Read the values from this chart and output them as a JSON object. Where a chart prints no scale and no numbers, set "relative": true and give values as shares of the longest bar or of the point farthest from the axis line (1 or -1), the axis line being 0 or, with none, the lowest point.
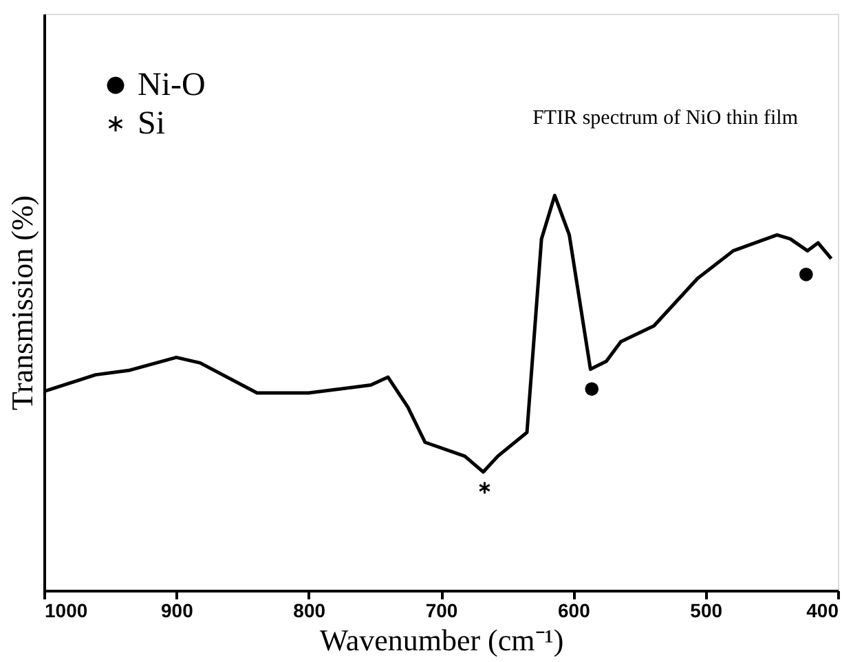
{
  "chart_data": {
    "type": "line",
    "relative": true,
    "xlabel": "Wavenumber (cm⁻¹)",
    "ylabel": "Transmission (%)",
    "xlim": [
      1000,
      400
    ],
    "xticks": [
      1000,
      900,
      800,
      700,
      600,
      500,
      400
    ],
    "grid": false,
    "legend": "top left",
    "annotations": [
      "FTIR spectrum of NiO thin film"
    ],
    "series": [
      {
        "color": "#000000",
        "marker": "none",
        "line_style": "solid",
        "x": [
          999,
          961,
          936,
          900,
          882,
          839,
          800,
          753,
          740,
          725,
          712,
          682,
          668,
          657,
          635,
          624,
          614,
          603,
          587,
          575,
          564,
          539,
          506,
          479,
          446,
          436,
          423,
          415,
          405
        ],
        "values": [
          0.505,
          0.546,
          0.557,
          0.59,
          0.576,
          0.5,
          0.5,
          0.52,
          0.54,
          0.464,
          0.375,
          0.34,
          0.3,
          0.34,
          0.4,
          0.89,
          1.0,
          0.9,
          0.56,
          0.58,
          0.63,
          0.67,
          0.79,
          0.86,
          0.9,
          0.89,
          0.86,
          0.88,
          0.84
        ]
      },
      {
        "type": "scatter",
        "name": "Ni-O",
        "color": "#000000",
        "marker": "circle",
        "x": [
          586,
          424
        ],
        "values": [
          0.51,
          0.8
        ]
      },
      {
        "type": "scatter",
        "name": "Si",
        "color": "#000000",
        "marker": "cross",
        "x": [
          667
        ],
        "values": [
          0.26
        ]
      }
    ]
  }
}
